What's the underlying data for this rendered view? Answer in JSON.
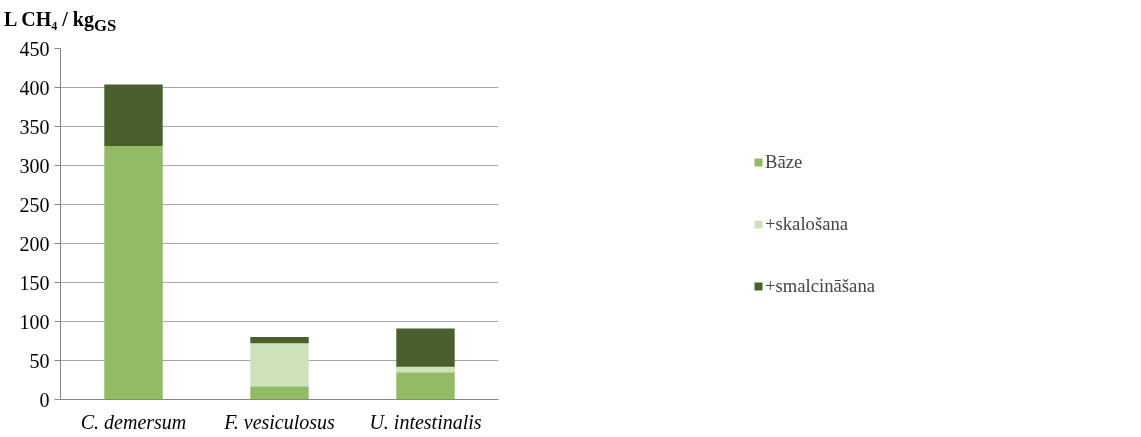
{
  "chart_data": {
    "type": "bar",
    "stacked": true,
    "ylabel": "L CH₄ / kg$_{GS}$",
    "categories": [
      "C. demersum",
      "F. vesiculosus",
      "U. intestinalis"
    ],
    "series": [
      {
        "name": "Bāze",
        "color": "#93bb65",
        "values": [
          325,
          17,
          35
        ]
      },
      {
        "name": "+skalošana",
        "color": "#cde2bb",
        "values": [
          0,
          55,
          7
        ]
      },
      {
        "name": "+smalcināšana",
        "color": "#4a5f2e",
        "values": [
          79,
          8,
          49
        ]
      }
    ],
    "ylim": [
      0,
      450
    ],
    "yticks": [
      0,
      50,
      100,
      150,
      200,
      250,
      300,
      350,
      400,
      450
    ],
    "grid": "y",
    "legend": "right"
  }
}
